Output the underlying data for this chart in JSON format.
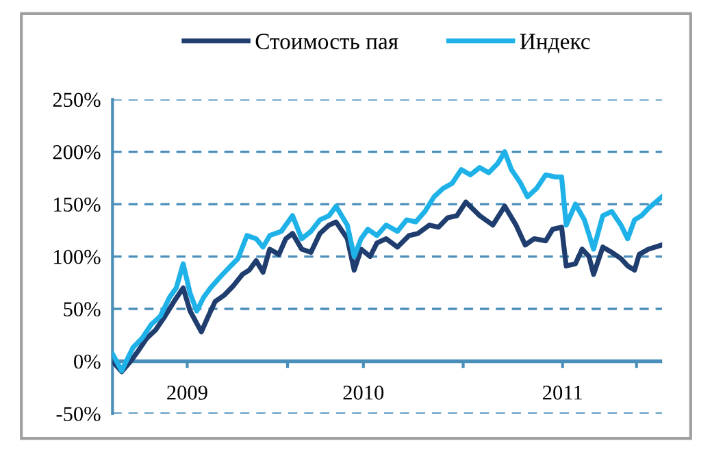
{
  "chart_data": {
    "type": "line",
    "xlim": [
      2009,
      2011.87
    ],
    "xticks": [
      {
        "value": 2009.39,
        "label": "2009"
      },
      {
        "value": 2009.914,
        "label": null
      },
      {
        "value": 2010.31,
        "label": "2010"
      },
      {
        "value": 2010.831,
        "label": null
      },
      {
        "value": 2011.35,
        "label": "2011"
      },
      {
        "value": 2011.736,
        "label": null
      }
    ],
    "ylim": [
      -50,
      250
    ],
    "yticks": [
      {
        "value": -50,
        "label": "-50%"
      },
      {
        "value": 0,
        "label": "0%"
      },
      {
        "value": 50,
        "label": "50%"
      },
      {
        "value": 100,
        "label": "100%"
      },
      {
        "value": 150,
        "label": "150%"
      },
      {
        "value": 200,
        "label": "200%"
      },
      {
        "value": 250,
        "label": "250%"
      }
    ],
    "ref_lines": [
      {
        "axis": "y",
        "value": 0,
        "color": "#4a8fba",
        "line_style": "solid"
      }
    ],
    "grid": "y",
    "legend": "top",
    "marker": "none",
    "line_style": "solid",
    "series": [
      {
        "name": "Стоимость пая",
        "color": "#1f3d6e",
        "x": [
          2009.0,
          2009.048,
          2009.095,
          2009.131,
          2009.179,
          2009.226,
          2009.274,
          2009.321,
          2009.369,
          2009.405,
          2009.464,
          2009.5,
          2009.536,
          2009.583,
          2009.631,
          2009.679,
          2009.714,
          2009.75,
          2009.786,
          2009.821,
          2009.869,
          2009.905,
          2009.94,
          2009.988,
          2010.036,
          2010.083,
          2010.131,
          2010.167,
          2010.226,
          2010.262,
          2010.298,
          2010.345,
          2010.381,
          2010.429,
          2010.488,
          2010.548,
          2010.595,
          2010.655,
          2010.702,
          2010.75,
          2010.798,
          2010.845,
          2010.917,
          2010.986,
          2011.048,
          2011.107,
          2011.155,
          2011.202,
          2011.262,
          2011.298,
          2011.345,
          2011.369,
          2011.417,
          2011.452,
          2011.488,
          2011.512,
          2011.56,
          2011.607,
          2011.655,
          2011.69,
          2011.726,
          2011.75,
          2011.798,
          2011.869
        ],
        "values": [
          0,
          -10,
          0,
          9,
          22,
          30,
          43,
          57,
          70,
          48,
          28,
          43,
          57,
          63,
          72,
          83,
          87,
          96,
          85,
          107,
          102,
          117,
          122,
          107,
          104,
          122,
          130,
          133,
          117,
          87,
          107,
          100,
          113,
          117,
          109,
          120,
          122,
          130,
          128,
          137,
          139,
          152,
          139,
          130,
          148,
          130,
          111,
          117,
          115,
          126,
          128,
          91,
          93,
          107,
          100,
          83,
          109,
          104,
          98,
          91,
          87,
          102,
          107,
          111
        ]
      },
      {
        "name": "Индекс",
        "color": "#1fb2e8",
        "x": [
          2009.0,
          2009.048,
          2009.107,
          2009.155,
          2009.202,
          2009.25,
          2009.298,
          2009.333,
          2009.369,
          2009.405,
          2009.44,
          2009.476,
          2009.512,
          2009.56,
          2009.607,
          2009.655,
          2009.702,
          2009.75,
          2009.786,
          2009.821,
          2009.881,
          2009.94,
          2009.988,
          2010.036,
          2010.083,
          2010.131,
          2010.167,
          2010.226,
          2010.262,
          2010.298,
          2010.333,
          2010.381,
          2010.429,
          2010.488,
          2010.536,
          2010.583,
          2010.631,
          2010.679,
          2010.726,
          2010.774,
          2010.821,
          2010.869,
          2010.917,
          2010.964,
          2011.012,
          2011.048,
          2011.083,
          2011.131,
          2011.167,
          2011.214,
          2011.262,
          2011.31,
          2011.345,
          2011.369,
          2011.417,
          2011.464,
          2011.512,
          2011.56,
          2011.607,
          2011.655,
          2011.69,
          2011.726,
          2011.762,
          2011.798,
          2011.869
        ],
        "values": [
          7,
          -9,
          13,
          22,
          35,
          43,
          61,
          70,
          93,
          65,
          48,
          61,
          70,
          80,
          89,
          98,
          120,
          117,
          109,
          120,
          124,
          139,
          117,
          124,
          135,
          139,
          148,
          130,
          100,
          117,
          126,
          120,
          130,
          124,
          135,
          133,
          143,
          157,
          165,
          170,
          183,
          178,
          185,
          180,
          189,
          200,
          183,
          170,
          157,
          165,
          178,
          176,
          176,
          130,
          150,
          135,
          107,
          139,
          143,
          130,
          117,
          135,
          139,
          146,
          157
        ]
      }
    ]
  }
}
